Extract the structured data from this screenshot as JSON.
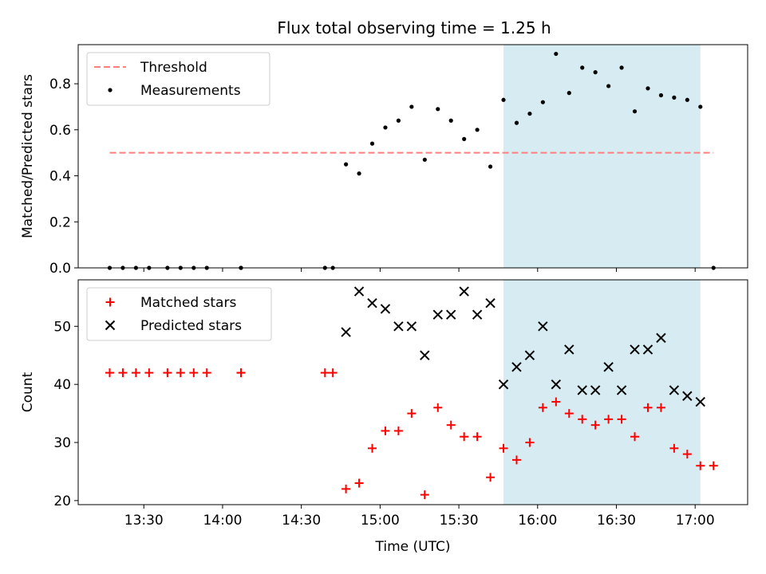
{
  "title": "Flux total observing time = 1.25 h",
  "chart_data": [
    {
      "type": "scatter",
      "panel": "top",
      "ylabel": "Matched/Predicted stars",
      "ylim": [
        0,
        0.97
      ],
      "yticks": [
        0.0,
        0.2,
        0.4,
        0.6,
        0.8
      ],
      "ytick_labels": [
        "0.0",
        "0.2",
        "0.4",
        "0.6",
        "0.8"
      ],
      "xlim": [
        "13:05",
        "17:20"
      ],
      "shaded_span": {
        "start": "15:47",
        "end": "17:02",
        "color": "#add8e6"
      },
      "threshold": {
        "name": "Threshold",
        "value": 0.5,
        "x_start": "13:17",
        "x_end": "17:07",
        "color": "#ff7f7f",
        "style": "dashed"
      },
      "legend": {
        "placement": "upper-left",
        "entries": [
          "Threshold",
          "Measurements"
        ]
      },
      "series": [
        {
          "name": "Measurements",
          "marker": "dot",
          "color": "#000000",
          "points": [
            [
              "13:17",
              0.0
            ],
            [
              "13:22",
              0.0
            ],
            [
              "13:27",
              0.0
            ],
            [
              "13:32",
              0.0
            ],
            [
              "13:39",
              0.0
            ],
            [
              "13:44",
              0.0
            ],
            [
              "13:49",
              0.0
            ],
            [
              "13:54",
              0.0
            ],
            [
              "14:07",
              0.0
            ],
            [
              "14:07",
              0.0
            ],
            [
              "14:39",
              0.0
            ],
            [
              "14:42",
              0.0
            ],
            [
              "14:47",
              0.45
            ],
            [
              "14:52",
              0.41
            ],
            [
              "14:57",
              0.54
            ],
            [
              "15:02",
              0.61
            ],
            [
              "15:07",
              0.64
            ],
            [
              "15:12",
              0.7
            ],
            [
              "15:17",
              0.47
            ],
            [
              "15:22",
              0.69
            ],
            [
              "15:27",
              0.64
            ],
            [
              "15:32",
              0.56
            ],
            [
              "15:37",
              0.6
            ],
            [
              "15:42",
              0.44
            ],
            [
              "15:47",
              0.73
            ],
            [
              "15:52",
              0.63
            ],
            [
              "15:57",
              0.67
            ],
            [
              "16:02",
              0.72
            ],
            [
              "16:07",
              0.93
            ],
            [
              "16:12",
              0.76
            ],
            [
              "16:17",
              0.87
            ],
            [
              "16:22",
              0.85
            ],
            [
              "16:27",
              0.79
            ],
            [
              "16:32",
              0.87
            ],
            [
              "16:37",
              0.68
            ],
            [
              "16:42",
              0.78
            ],
            [
              "16:47",
              0.75
            ],
            [
              "16:52",
              0.74
            ],
            [
              "16:57",
              0.73
            ],
            [
              "17:02",
              0.7
            ],
            [
              "17:07",
              0.0
            ]
          ]
        }
      ]
    },
    {
      "type": "scatter",
      "panel": "bottom",
      "xlabel": "Time (UTC)",
      "ylabel": "Count",
      "ylim": [
        19.3,
        58
      ],
      "yticks": [
        20,
        30,
        40,
        50
      ],
      "ytick_labels": [
        "20",
        "30",
        "40",
        "50"
      ],
      "xlim": [
        "13:05",
        "17:20"
      ],
      "xticks": [
        "13:30",
        "14:00",
        "14:30",
        "15:00",
        "15:30",
        "16:00",
        "16:30",
        "17:00"
      ],
      "xtick_labels": [
        "13:30",
        "14:00",
        "14:30",
        "15:00",
        "15:30",
        "16:00",
        "16:30",
        "17:00"
      ],
      "shaded_span": {
        "start": "15:47",
        "end": "17:02",
        "color": "#add8e6"
      },
      "legend": {
        "placement": "upper-left",
        "entries": [
          "Matched stars",
          "Predicted stars"
        ]
      },
      "series": [
        {
          "name": "Matched stars",
          "marker": "plus",
          "color": "#ff0000",
          "points": [
            [
              "13:17",
              42
            ],
            [
              "13:22",
              42
            ],
            [
              "13:27",
              42
            ],
            [
              "13:32",
              42
            ],
            [
              "13:39",
              42
            ],
            [
              "13:44",
              42
            ],
            [
              "13:49",
              42
            ],
            [
              "13:54",
              42
            ],
            [
              "14:07",
              42
            ],
            [
              "14:07",
              42
            ],
            [
              "14:39",
              42
            ],
            [
              "14:42",
              42
            ],
            [
              "14:47",
              22
            ],
            [
              "14:52",
              23
            ],
            [
              "14:57",
              29
            ],
            [
              "15:02",
              32
            ],
            [
              "15:07",
              32
            ],
            [
              "15:12",
              35
            ],
            [
              "15:17",
              21
            ],
            [
              "15:22",
              36
            ],
            [
              "15:27",
              33
            ],
            [
              "15:32",
              31
            ],
            [
              "15:37",
              31
            ],
            [
              "15:42",
              24
            ],
            [
              "15:47",
              29
            ],
            [
              "15:52",
              27
            ],
            [
              "15:57",
              30
            ],
            [
              "16:02",
              36
            ],
            [
              "16:07",
              37
            ],
            [
              "16:12",
              35
            ],
            [
              "16:17",
              34
            ],
            [
              "16:22",
              33
            ],
            [
              "16:27",
              34
            ],
            [
              "16:32",
              34
            ],
            [
              "16:37",
              31
            ],
            [
              "16:42",
              36
            ],
            [
              "16:47",
              36
            ],
            [
              "16:52",
              29
            ],
            [
              "16:57",
              28
            ],
            [
              "17:02",
              26
            ],
            [
              "17:07",
              26
            ]
          ]
        },
        {
          "name": "Predicted stars",
          "marker": "x",
          "color": "#000000",
          "points": [
            [
              "14:47",
              49
            ],
            [
              "14:52",
              56
            ],
            [
              "14:57",
              54
            ],
            [
              "15:02",
              53
            ],
            [
              "15:07",
              50
            ],
            [
              "15:12",
              50
            ],
            [
              "15:17",
              45
            ],
            [
              "15:22",
              52
            ],
            [
              "15:27",
              52
            ],
            [
              "15:32",
              56
            ],
            [
              "15:37",
              52
            ],
            [
              "15:42",
              54
            ],
            [
              "15:47",
              40
            ],
            [
              "15:52",
              43
            ],
            [
              "15:57",
              45
            ],
            [
              "16:02",
              50
            ],
            [
              "16:07",
              40
            ],
            [
              "16:12",
              46
            ],
            [
              "16:17",
              39
            ],
            [
              "16:22",
              39
            ],
            [
              "16:27",
              43
            ],
            [
              "16:32",
              39
            ],
            [
              "16:37",
              46
            ],
            [
              "16:42",
              46
            ],
            [
              "16:47",
              48
            ],
            [
              "16:52",
              39
            ],
            [
              "16:57",
              38
            ],
            [
              "17:02",
              37
            ]
          ]
        }
      ]
    }
  ]
}
